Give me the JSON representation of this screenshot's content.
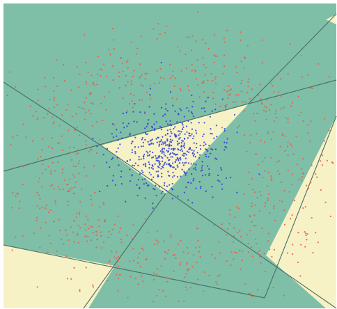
{
  "figure": {
    "kind": "classifier-decision-regions",
    "colors": {
      "background": "#ffffff",
      "region_outside": "#7fbfa8",
      "region_inside": "#f7f2c6",
      "boundary_line": "#4a6f63",
      "class_outer_points": "#e0604a",
      "class_inner_points": "#2a3fd6"
    },
    "classes": [
      {
        "id": "outer",
        "color_key": "class_outer_points"
      },
      {
        "id": "inner",
        "color_key": "class_inner_points"
      }
    ],
    "point_counts": {
      "outer": 820,
      "inner": 520
    },
    "regions_visible": 4,
    "boundary_lines_visible": 6
  }
}
